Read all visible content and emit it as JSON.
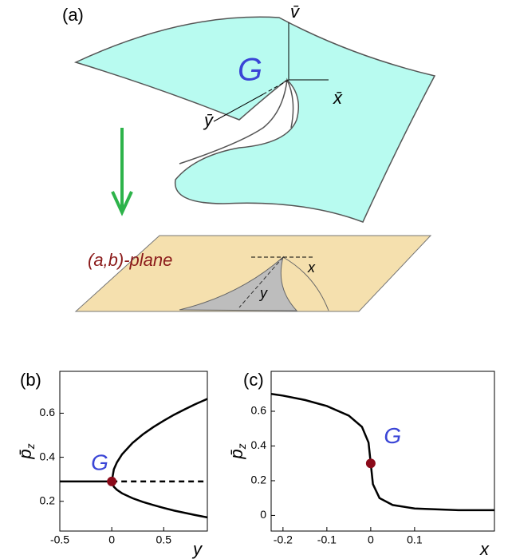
{
  "figure_a": {
    "label": "(a)",
    "surface_label": "G",
    "axes": [
      "v̄",
      "x̄",
      "ȳ"
    ],
    "plane_label": "(a,b)-plane",
    "plane_axes": [
      "x",
      "y"
    ]
  },
  "chart_data": [
    {
      "type": "line",
      "panel_label": "(b)",
      "xlabel": "y",
      "ylabel": {
        "symbol": "p̄",
        "subscript": "z"
      },
      "annotation": "G",
      "xlim": [
        -0.5,
        0.92
      ],
      "ylim": [
        0.065,
        0.79
      ],
      "xticks": [
        -0.5,
        0,
        0.5
      ],
      "yticks": [
        0.2,
        0.4,
        0.6
      ],
      "point": {
        "x": 0,
        "y": 0.29,
        "color": "#8b0a1a"
      },
      "series": [
        {
          "color": "#000000",
          "style": "solid",
          "x": [
            -0.5,
            0
          ],
          "values": [
            0.29,
            0.29
          ]
        },
        {
          "color": "#000000",
          "style": "dashed",
          "x": [
            0,
            0.92
          ],
          "values": [
            0.29,
            0.29
          ]
        },
        {
          "color": "#000000",
          "style": "solid",
          "x": [
            0,
            0.02,
            0.05,
            0.1,
            0.2,
            0.3,
            0.4,
            0.5,
            0.6,
            0.7,
            0.8,
            0.92
          ],
          "values": [
            0.29,
            0.345,
            0.377,
            0.414,
            0.465,
            0.504,
            0.537,
            0.566,
            0.593,
            0.617,
            0.64,
            0.665
          ]
        },
        {
          "color": "#000000",
          "style": "solid",
          "x": [
            0,
            0.02,
            0.05,
            0.1,
            0.2,
            0.3,
            0.4,
            0.5,
            0.6,
            0.7,
            0.8,
            0.92
          ],
          "values": [
            0.29,
            0.266,
            0.252,
            0.236,
            0.214,
            0.197,
            0.183,
            0.17,
            0.158,
            0.148,
            0.138,
            0.127
          ]
        }
      ]
    },
    {
      "type": "line",
      "panel_label": "(c)",
      "xlabel": "x",
      "ylabel": {
        "symbol": "p̄",
        "subscript": "z"
      },
      "annotation": "G",
      "xlim": [
        -0.227,
        0.282
      ],
      "ylim": [
        -0.09,
        0.83
      ],
      "xticks": [
        -0.2,
        -0.1,
        0,
        0.1
      ],
      "yticks": [
        0,
        0.2,
        0.4,
        0.6
      ],
      "point": {
        "x": 0,
        "y": 0.3,
        "color": "#8b0a1a"
      },
      "series": [
        {
          "color": "#000000",
          "style": "solid",
          "x": [
            -0.227,
            -0.2,
            -0.15,
            -0.1,
            -0.05,
            -0.02,
            -0.005,
            0,
            0.005,
            0.02,
            0.05,
            0.1,
            0.2,
            0.282
          ],
          "values": [
            0.7,
            0.69,
            0.665,
            0.63,
            0.575,
            0.51,
            0.42,
            0.3,
            0.18,
            0.1,
            0.06,
            0.04,
            0.03,
            0.03
          ]
        }
      ]
    }
  ]
}
